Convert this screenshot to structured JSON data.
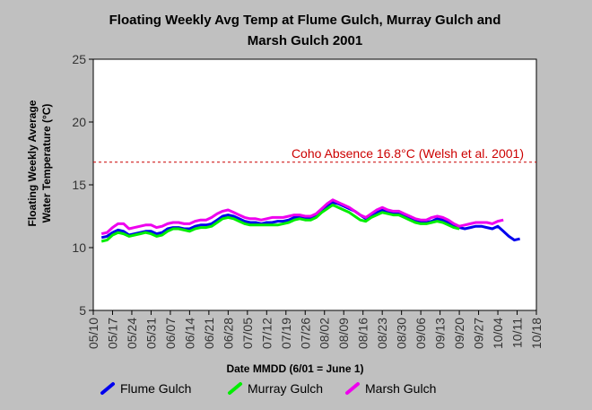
{
  "chart_data": {
    "type": "line",
    "title_lines": [
      "Floating Weekly Avg Temp at Flume Gulch, Murray Gulch and",
      "Marsh Gulch 2001"
    ],
    "xlabel": "Date MMDD (6/01 = June 1)",
    "ylabel_lines": [
      "Floating Weekly Average",
      "Water Temperature (°C)"
    ],
    "ylim": [
      5,
      25
    ],
    "yticks": [
      5,
      10,
      15,
      20,
      25
    ],
    "xlim": [
      0,
      161
    ],
    "xtick_labels": [
      "05/10",
      "05/17",
      "05/24",
      "05/31",
      "06/07",
      "06/14",
      "06/21",
      "06/28",
      "07/05",
      "07/12",
      "07/19",
      "07/26",
      "08/02",
      "08/09",
      "08/16",
      "08/23",
      "08/30",
      "09/06",
      "09/13",
      "09/20",
      "09/27",
      "10/04",
      "10/11",
      "10/18"
    ],
    "xtick_positions": [
      0,
      7,
      14,
      21,
      28,
      35,
      42,
      49,
      56,
      63,
      70,
      77,
      84,
      91,
      98,
      105,
      112,
      119,
      126,
      133,
      140,
      147,
      154,
      161
    ],
    "threshold": {
      "value": 16.8,
      "label": "Coho Absence 16.8°C (Welsh et al. 2001)",
      "color": "#cc0000"
    },
    "legend_position": "bottom",
    "series": [
      {
        "name": "Flume Gulch",
        "color": "#0000ee",
        "x": [
          3,
          5,
          7,
          9,
          11,
          13,
          15,
          17,
          19,
          21,
          23,
          25,
          27,
          29,
          31,
          33,
          35,
          37,
          39,
          41,
          43,
          45,
          47,
          49,
          51,
          53,
          55,
          57,
          59,
          61,
          63,
          65,
          67,
          69,
          71,
          73,
          75,
          77,
          79,
          81,
          83,
          85,
          87,
          89,
          91,
          93,
          95,
          97,
          99,
          101,
          103,
          105,
          107,
          109,
          111,
          113,
          115,
          117,
          119,
          121,
          123,
          125,
          127,
          129,
          131,
          133,
          135,
          137,
          139,
          141,
          143,
          145,
          147,
          149,
          151,
          153,
          155
        ],
        "values": [
          10.8,
          10.9,
          11.2,
          11.4,
          11.3,
          11.0,
          11.1,
          11.2,
          11.3,
          11.3,
          11.1,
          11.2,
          11.5,
          11.6,
          11.6,
          11.5,
          11.5,
          11.7,
          11.8,
          11.8,
          11.9,
          12.2,
          12.5,
          12.6,
          12.5,
          12.3,
          12.1,
          12.0,
          12.0,
          11.9,
          12.0,
          12.0,
          12.1,
          12.1,
          12.2,
          12.4,
          12.4,
          12.3,
          12.3,
          12.5,
          12.9,
          13.3,
          13.6,
          13.5,
          13.3,
          13.1,
          12.9,
          12.6,
          12.3,
          12.6,
          12.8,
          13.0,
          12.8,
          12.7,
          12.7,
          12.6,
          12.4,
          12.1,
          12.0,
          12.0,
          12.1,
          12.3,
          12.2,
          12.0,
          11.8,
          11.6,
          11.5,
          11.6,
          11.7,
          11.7,
          11.6,
          11.5,
          11.7,
          11.3,
          10.9,
          10.6,
          10.7
        ]
      },
      {
        "name": "Murray Gulch",
        "color": "#00ee00",
        "x": [
          3,
          5,
          7,
          9,
          11,
          13,
          15,
          17,
          19,
          21,
          23,
          25,
          27,
          29,
          31,
          33,
          35,
          37,
          39,
          41,
          43,
          45,
          47,
          49,
          51,
          53,
          55,
          57,
          59,
          61,
          63,
          65,
          67,
          69,
          71,
          73,
          75,
          77,
          79,
          81,
          83,
          85,
          87,
          89,
          91,
          93,
          95,
          97,
          99,
          101,
          103,
          105,
          107,
          109,
          111,
          113,
          115,
          117,
          119,
          121,
          123,
          125,
          127,
          129,
          131,
          133
        ],
        "values": [
          10.5,
          10.6,
          11.0,
          11.2,
          11.1,
          10.9,
          11.0,
          11.1,
          11.2,
          11.1,
          10.9,
          11.0,
          11.3,
          11.5,
          11.5,
          11.4,
          11.3,
          11.5,
          11.6,
          11.6,
          11.7,
          12.0,
          12.3,
          12.4,
          12.3,
          12.1,
          11.9,
          11.8,
          11.8,
          11.8,
          11.8,
          11.8,
          11.8,
          11.9,
          12.0,
          12.2,
          12.3,
          12.2,
          12.2,
          12.4,
          12.8,
          13.1,
          13.4,
          13.2,
          13.0,
          12.8,
          12.5,
          12.2,
          12.1,
          12.4,
          12.6,
          12.8,
          12.7,
          12.6,
          12.6,
          12.4,
          12.2,
          12.0,
          11.9,
          11.9,
          12.0,
          12.1,
          12.0,
          11.8,
          11.6,
          11.5
        ]
      },
      {
        "name": "Marsh Gulch",
        "color": "#ee00ee",
        "x": [
          3,
          5,
          7,
          9,
          11,
          13,
          15,
          17,
          19,
          21,
          23,
          25,
          27,
          29,
          31,
          33,
          35,
          37,
          39,
          41,
          43,
          45,
          47,
          49,
          51,
          53,
          55,
          57,
          59,
          61,
          63,
          65,
          67,
          69,
          71,
          73,
          75,
          77,
          79,
          81,
          83,
          85,
          87,
          89,
          91,
          93,
          95,
          97,
          99,
          101,
          103,
          105,
          107,
          109,
          111,
          113,
          115,
          117,
          119,
          121,
          123,
          125,
          127,
          129,
          131,
          133,
          135,
          137,
          139,
          141,
          143,
          145,
          147,
          149
        ],
        "values": [
          11.1,
          11.2,
          11.6,
          11.9,
          11.9,
          11.5,
          11.6,
          11.7,
          11.8,
          11.8,
          11.6,
          11.7,
          11.9,
          12.0,
          12.0,
          11.9,
          11.9,
          12.1,
          12.2,
          12.2,
          12.4,
          12.7,
          12.9,
          13.0,
          12.8,
          12.6,
          12.4,
          12.3,
          12.3,
          12.2,
          12.3,
          12.4,
          12.4,
          12.4,
          12.5,
          12.6,
          12.6,
          12.5,
          12.5,
          12.7,
          13.1,
          13.5,
          13.8,
          13.6,
          13.4,
          13.2,
          12.9,
          12.6,
          12.4,
          12.7,
          13.0,
          13.2,
          13.0,
          12.9,
          12.9,
          12.7,
          12.5,
          12.3,
          12.2,
          12.2,
          12.4,
          12.5,
          12.4,
          12.2,
          11.9,
          11.7,
          11.8,
          11.9,
          12.0,
          12.0,
          12.0,
          11.9,
          12.1,
          12.2
        ]
      }
    ]
  }
}
